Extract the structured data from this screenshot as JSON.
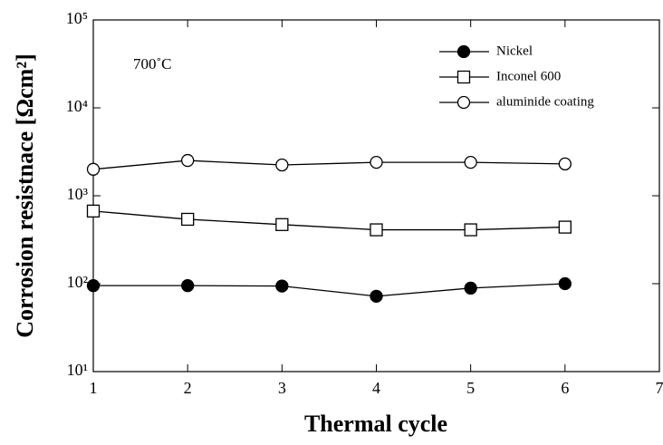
{
  "chart_data": {
    "type": "line",
    "y_label": "Corrosion resistnace [Ωcm²]",
    "x_label": "Thermal cycle",
    "annotation": "700˚C",
    "x": [
      1,
      2,
      3,
      4,
      5,
      6
    ],
    "xlim": [
      1,
      7
    ],
    "xticks": [
      1,
      2,
      3,
      4,
      5,
      6,
      7
    ],
    "ylim": [
      10,
      100000
    ],
    "log_y": true,
    "yticks": [
      {
        "value": 10,
        "label": "10¹"
      },
      {
        "value": 100,
        "label": "10²"
      },
      {
        "value": 1000,
        "label": "10³"
      },
      {
        "value": 10000,
        "label": "10⁴"
      },
      {
        "value": 100000,
        "label": "10⁵"
      }
    ],
    "legend": "upper right",
    "series": [
      {
        "name": "Nickel",
        "color": "#000000",
        "marker": "circle",
        "filled": true,
        "values": [
          95,
          95,
          94,
          72,
          89,
          100
        ]
      },
      {
        "name": "Inconel 600",
        "color": "#000000",
        "marker": "square",
        "filled": false,
        "values": [
          670,
          540,
          470,
          410,
          410,
          440
        ]
      },
      {
        "name": "aluminide coating",
        "color": "#000000",
        "marker": "circle",
        "filled": false,
        "values": [
          2000,
          2520,
          2240,
          2400,
          2400,
          2300
        ]
      }
    ]
  }
}
